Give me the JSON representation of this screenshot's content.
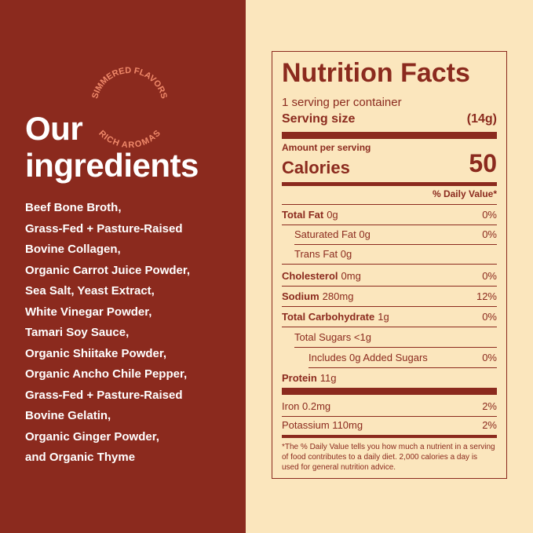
{
  "badge": {
    "top": "SIMMERED FLAVORS",
    "bottom": "RICH AROMAS"
  },
  "heading": [
    "Our",
    "ingredients"
  ],
  "ingredients": [
    "Beef Bone Broth,",
    "Grass-Fed + Pasture-Raised",
    "Bovine Collagen,",
    "Organic Carrot Juice Powder,",
    "Sea Salt, Yeast Extract,",
    "White Vinegar Powder,",
    "Tamari Soy Sauce,",
    "Organic Shiitake Powder,",
    "Organic Ancho Chile Pepper,",
    "Grass-Fed + Pasture-Raised",
    "Bovine Gelatin,",
    "Organic Ginger Powder,",
    "and Organic Thyme"
  ],
  "nutrition": {
    "title": "Nutrition Facts",
    "servings": "1 serving per container",
    "serving_size_label": "Serving size",
    "serving_size_value": "(14g)",
    "amount_label": "Amount per serving",
    "calories_label": "Calories",
    "calories_value": 50,
    "dv_header": "% Daily Value*",
    "rows": [
      {
        "label": "Total Fat",
        "amount": "0g",
        "dv": "0%"
      },
      {
        "label": "Saturated Fat 0g",
        "dv": "0%"
      },
      {
        "label": "Trans Fat 0g"
      },
      {
        "label": "Cholesterol",
        "amount": "0mg",
        "dv": "0%"
      },
      {
        "label": "Sodium",
        "amount": "280mg",
        "dv": "12%"
      },
      {
        "label": "Total Carbohydrate",
        "amount": "1g",
        "dv": "0%"
      },
      {
        "label": "Total Sugars <1g"
      },
      {
        "label": "Includes 0g Added Sugars",
        "dv": "0%"
      },
      {
        "label": "Protein",
        "amount": "11g"
      },
      {
        "label": "Iron 0.2mg",
        "dv": "2%"
      },
      {
        "label": "Potassium 110mg",
        "dv": "2%"
      }
    ],
    "footnote": "*The % Daily Value tells you how much a nutrient in a serving of food contributes to a daily diet. 2,000 calories a day is used for general nutrition advice."
  }
}
